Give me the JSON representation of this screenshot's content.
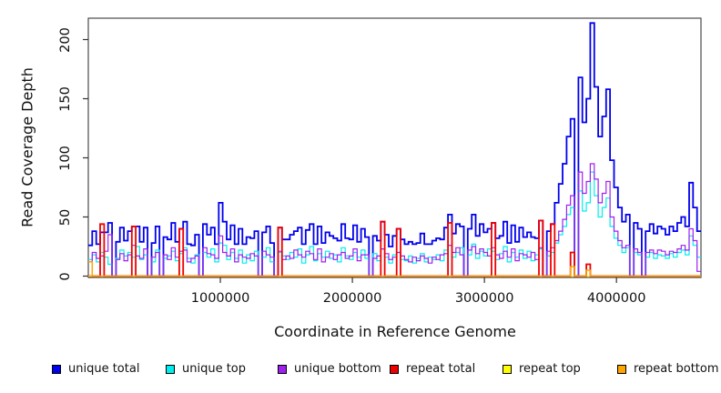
{
  "figure": {
    "background": "#ffffff",
    "box_color": "#4a4a4a",
    "tick_color": "#333333"
  },
  "chart_data": {
    "type": "line",
    "step": true,
    "title": "",
    "xlabel": "Coordinate in Reference Genome",
    "ylabel": "Read Coverage Depth",
    "xlim": [
      0,
      4640000
    ],
    "ylim": [
      0,
      218
    ],
    "x_ticks": [
      1000000,
      2000000,
      3000000,
      4000000
    ],
    "x_tick_labels": [
      "1000000",
      "2000000",
      "3000000",
      "4000000"
    ],
    "y_ticks": [
      0,
      50,
      100,
      150,
      200
    ],
    "y_tick_labels": [
      "0",
      "50",
      "100",
      "150",
      "200"
    ],
    "bins": 155,
    "bin_size": 29935,
    "grid": false,
    "legend_position": "bottom",
    "series": [
      {
        "name": "unique total",
        "color": "#0000EE",
        "width": 1.8,
        "values": [
          26,
          38,
          27,
          37,
          37,
          45,
          0,
          29,
          41,
          30,
          38,
          42,
          42,
          29,
          41,
          0,
          28,
          42,
          0,
          33,
          31,
          45,
          29,
          40,
          46,
          27,
          26,
          35,
          0,
          44,
          35,
          41,
          27,
          62,
          46,
          31,
          43,
          27,
          40,
          27,
          33,
          32,
          38,
          0,
          37,
          42,
          28,
          0,
          41,
          31,
          31,
          35,
          38,
          41,
          27,
          39,
          44,
          27,
          42,
          28,
          37,
          34,
          32,
          30,
          44,
          32,
          31,
          43,
          29,
          40,
          33,
          0,
          34,
          30,
          46,
          35,
          25,
          34,
          40,
          31,
          27,
          29,
          27,
          28,
          36,
          27,
          27,
          30,
          32,
          31,
          41,
          52,
          36,
          44,
          42,
          0,
          40,
          52,
          34,
          44,
          37,
          40,
          45,
          32,
          34,
          46,
          28,
          43,
          29,
          41,
          33,
          37,
          33,
          32,
          47,
          0,
          38,
          44,
          62,
          78,
          95,
          118,
          133,
          0,
          168,
          130,
          150,
          214,
          160,
          118,
          135,
          158,
          98,
          75,
          58,
          46,
          52,
          0,
          45,
          40,
          0,
          38,
          44,
          36,
          42,
          40,
          35,
          42,
          38,
          45,
          50,
          42,
          79,
          58,
          38
        ]
      },
      {
        "name": "unique top",
        "color": "#00EEEE",
        "width": 1.2,
        "values": [
          14,
          18,
          12,
          20,
          16,
          10,
          0,
          15,
          22,
          17,
          20,
          16,
          25,
          14,
          18,
          0,
          12,
          22,
          0,
          15,
          17,
          21,
          13,
          19,
          24,
          15,
          11,
          18,
          0,
          20,
          16,
          23,
          12,
          28,
          26,
          14,
          20,
          15,
          22,
          11,
          18,
          13,
          21,
          0,
          16,
          24,
          12,
          0,
          20,
          17,
          14,
          20,
          16,
          23,
          11,
          18,
          25,
          13,
          19,
          16,
          21,
          15,
          18,
          12,
          24,
          17,
          14,
          20,
          16,
          22,
          15,
          0,
          19,
          13,
          23,
          16,
          11,
          18,
          20,
          14,
          13,
          17,
          11,
          15,
          19,
          12,
          16,
          14,
          18,
          13,
          22,
          26,
          16,
          20,
          24,
          0,
          18,
          27,
          15,
          21,
          17,
          23,
          21,
          14,
          19,
          25,
          12,
          20,
          16,
          22,
          15,
          21,
          13,
          18,
          23,
          0,
          17,
          20,
          28,
          35,
          42,
          52,
          58,
          0,
          72,
          55,
          62,
          88,
          68,
          50,
          58,
          66,
          42,
          32,
          26,
          20,
          24,
          0,
          20,
          18,
          0,
          16,
          20,
          15,
          18,
          17,
          15,
          19,
          16,
          20,
          22,
          18,
          34,
          26,
          16
        ]
      },
      {
        "name": "unique bottom",
        "color": "#A020F0",
        "width": 1.2,
        "values": [
          12,
          20,
          15,
          17,
          21,
          35,
          0,
          14,
          19,
          13,
          18,
          26,
          17,
          15,
          23,
          0,
          16,
          20,
          0,
          18,
          14,
          24,
          16,
          21,
          22,
          12,
          15,
          17,
          0,
          24,
          19,
          18,
          15,
          34,
          20,
          17,
          23,
          12,
          18,
          16,
          15,
          19,
          17,
          0,
          21,
          18,
          16,
          0,
          21,
          14,
          17,
          15,
          22,
          18,
          16,
          21,
          19,
          14,
          23,
          12,
          16,
          19,
          14,
          18,
          20,
          15,
          17,
          23,
          13,
          18,
          18,
          0,
          15,
          17,
          23,
          19,
          14,
          16,
          20,
          17,
          14,
          12,
          16,
          13,
          17,
          15,
          11,
          16,
          14,
          18,
          19,
          26,
          20,
          24,
          18,
          0,
          22,
          25,
          19,
          23,
          20,
          17,
          24,
          18,
          15,
          21,
          16,
          23,
          13,
          19,
          18,
          16,
          20,
          14,
          24,
          0,
          21,
          24,
          30,
          38,
          48,
          60,
          68,
          0,
          88,
          70,
          80,
          95,
          82,
          62,
          70,
          80,
          50,
          38,
          30,
          24,
          26,
          0,
          23,
          20,
          0,
          20,
          22,
          19,
          22,
          21,
          18,
          21,
          20,
          23,
          26,
          22,
          40,
          30,
          4
        ]
      },
      {
        "name": "repeat total",
        "color": "#EE0000",
        "width": 1.8,
        "default": 0,
        "spikes": {
          "3": 44,
          "11": 42,
          "23": 40,
          "48": 41,
          "74": 46,
          "78": 40,
          "91": 45,
          "102": 45,
          "114": 47,
          "117": 44,
          "122": 20,
          "126": 10
        }
      },
      {
        "name": "repeat top",
        "color": "#FFFF00",
        "width": 1.0,
        "default": 0,
        "spikes": {}
      },
      {
        "name": "repeat bottom",
        "color": "#FFA500",
        "width": 1.5,
        "default": 0,
        "spikes": {
          "0": 12,
          "122": 8,
          "126": 5
        }
      }
    ]
  }
}
